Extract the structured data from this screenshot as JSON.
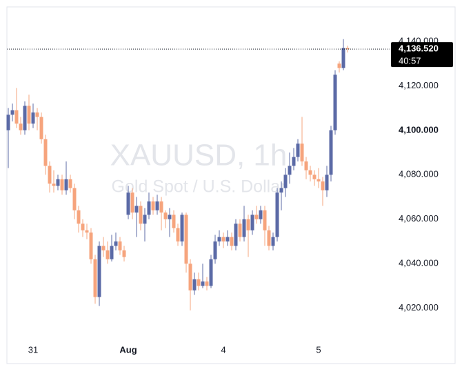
{
  "chart_data": {
    "type": "candlestick",
    "title": "XAUUSD, 1h",
    "subtitle": "Gold Spot / U.S. Dollar",
    "categories": [
      null,
      null,
      null,
      null,
      null,
      null,
      "31",
      null,
      null,
      null,
      null,
      null,
      null,
      null,
      null,
      null,
      null,
      null,
      null,
      null,
      null,
      null,
      null,
      null,
      null,
      null,
      null,
      null,
      null,
      "Aug",
      null,
      null,
      null,
      null,
      null,
      null,
      null,
      null,
      null,
      null,
      null,
      null,
      null,
      null,
      null,
      null,
      null,
      null,
      null,
      null,
      null,
      null,
      "4",
      null,
      null,
      null,
      null,
      null,
      null,
      null,
      null,
      null,
      null,
      null,
      null,
      null,
      null,
      null,
      null,
      null,
      null,
      null,
      null,
      null,
      null,
      "5",
      null,
      null,
      null,
      null,
      null,
      null,
      null
    ],
    "open": [
      4100,
      4107,
      4109,
      4103,
      4100,
      4111,
      4103,
      4108,
      4106,
      4096,
      4084,
      4076,
      4075,
      4078,
      4073,
      4078,
      4074,
      4064,
      4058,
      4055,
      4054,
      4042,
      4025,
      4048,
      4046,
      4042,
      4048,
      4050,
      4046,
      4062,
      4072,
      4063,
      4066,
      4058,
      4062,
      4068,
      4064,
      4068,
      4063,
      4060,
      4062,
      4056,
      4050,
      4062,
      4040,
      4028,
      4033,
      4030,
      4032,
      4030,
      4042,
      4050,
      4052,
      4050,
      4052,
      4048,
      4058,
      4052,
      4060,
      4055,
      4062,
      4060,
      4064,
      4055,
      4048,
      4052,
      4072,
      4074,
      4080,
      4084,
      4088,
      4094,
      4086,
      4082,
      4080,
      4078,
      4077,
      4073,
      4080,
      4100,
      4130,
      4128,
      4137
    ],
    "high": [
      4110,
      4112,
      4119,
      4106,
      4113,
      4116,
      4112,
      4110,
      4108,
      4098,
      4086,
      4082,
      4080,
      4080,
      4086,
      4080,
      4076,
      4066,
      4060,
      4058,
      4056,
      4044,
      4050,
      4052,
      4050,
      4053,
      4054,
      4052,
      4048,
      4075,
      4074,
      4070,
      4068,
      4065,
      4072,
      4070,
      4071,
      4070,
      4064,
      4065,
      4064,
      4058,
      4063,
      4063,
      4042,
      4036,
      4036,
      4040,
      4034,
      4044,
      4053,
      4055,
      4054,
      4055,
      4054,
      4060,
      4060,
      4066,
      4062,
      4064,
      4066,
      4066,
      4066,
      4057,
      4054,
      4074,
      4077,
      4083,
      4090,
      4092,
      4096,
      4106,
      4088,
      4084,
      4082,
      4083,
      4079,
      4084,
      4102,
      4127,
      4131,
      4141,
      4138
    ],
    "low": [
      4083,
      4104,
      4101,
      4098,
      4098,
      4100,
      4101,
      4100,
      4094,
      4080,
      4072,
      4072,
      4073,
      4071,
      4071,
      4072,
      4060,
      4054,
      4052,
      4051,
      4040,
      4022,
      4021,
      4043,
      4040,
      4041,
      4046,
      4044,
      4041,
      4060,
      4060,
      4052,
      4055,
      4050,
      4060,
      4062,
      4062,
      4055,
      4056,
      4052,
      4054,
      4048,
      4048,
      4036,
      4019,
      4026,
      4028,
      4029,
      4028,
      4029,
      4040,
      4048,
      4047,
      4048,
      4046,
      4046,
      4050,
      4050,
      4043,
      4053,
      4058,
      4058,
      4048,
      4046,
      4046,
      4050,
      4064,
      4070,
      4076,
      4082,
      4086,
      4084,
      4078,
      4077,
      4075,
      4074,
      4066,
      4070,
      4077,
      4098,
      4126,
      4127,
      4135
    ],
    "close": [
      4107,
      4109,
      4103,
      4100,
      4111,
      4103,
      4108,
      4106,
      4096,
      4084,
      4076,
      4075,
      4078,
      4073,
      4078,
      4074,
      4064,
      4058,
      4055,
      4054,
      4042,
      4025,
      4048,
      4046,
      4042,
      4048,
      4050,
      4046,
      4043,
      4072,
      4063,
      4066,
      4058,
      4062,
      4068,
      4064,
      4068,
      4063,
      4060,
      4062,
      4056,
      4050,
      4062,
      4040,
      4028,
      4033,
      4030,
      4032,
      4030,
      4042,
      4050,
      4052,
      4050,
      4052,
      4048,
      4058,
      4052,
      4060,
      4055,
      4062,
      4060,
      4064,
      4055,
      4048,
      4052,
      4072,
      4074,
      4080,
      4084,
      4088,
      4094,
      4086,
      4082,
      4080,
      4078,
      4077,
      4073,
      4080,
      4100,
      4125,
      4128,
      4137,
      4136.52
    ],
    "up_color": "#5b6aa6",
    "down_color": "#f6a47d",
    "ylim": [
      4005,
      4155.5
    ],
    "yticks": [
      {
        "value": 4020,
        "label": "4,020.000"
      },
      {
        "value": 4040,
        "label": "4,040.000"
      },
      {
        "value": 4060,
        "label": "4,060.000"
      },
      {
        "value": 4080,
        "label": "4,080.000"
      },
      {
        "value": 4100,
        "label": "4,100.000"
      },
      {
        "value": 4120,
        "label": "4,120.000"
      },
      {
        "value": 4140,
        "label": "4,140.000"
      }
    ],
    "last_price": {
      "value": 4136.52,
      "label": "4,136.520"
    },
    "countdown": "40:57"
  }
}
